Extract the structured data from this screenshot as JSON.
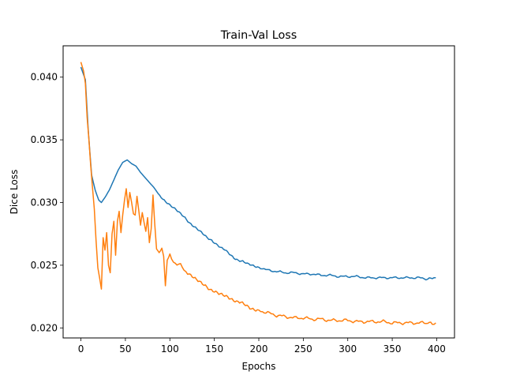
{
  "chart_data": {
    "type": "line",
    "title": "Train-Val Loss",
    "xlabel": "Epochs",
    "ylabel": "Dice Loss",
    "xlim": [
      -20,
      420
    ],
    "ylim": [
      0.0192,
      0.0425
    ],
    "xticks": [
      0,
      50,
      100,
      150,
      200,
      250,
      300,
      350,
      400
    ],
    "yticks": [
      0.02,
      0.025,
      0.03,
      0.035,
      0.04
    ],
    "ytick_labels": [
      "0.020",
      "0.025",
      "0.030",
      "0.035",
      "0.040"
    ],
    "grid": false,
    "legend": "none",
    "series": [
      {
        "color": "#1f77b4",
        "points": [
          [
            0,
            0.0408
          ],
          [
            5,
            0.0398
          ],
          [
            8,
            0.036
          ],
          [
            12,
            0.0322
          ],
          [
            16,
            0.031
          ],
          [
            20,
            0.0302
          ],
          [
            23,
            0.03
          ],
          [
            27,
            0.0304
          ],
          [
            32,
            0.031
          ],
          [
            37,
            0.0318
          ],
          [
            42,
            0.0326
          ],
          [
            47,
            0.0332
          ],
          [
            52,
            0.0334
          ],
          [
            57,
            0.0331
          ],
          [
            62,
            0.0329
          ],
          [
            67,
            0.0324
          ],
          [
            72,
            0.032
          ],
          [
            77,
            0.0316
          ],
          [
            82,
            0.0312
          ],
          [
            87,
            0.0307
          ],
          [
            92,
            0.0303
          ],
          [
            97,
            0.03
          ],
          [
            102,
            0.0297
          ],
          [
            107,
            0.0294
          ],
          [
            112,
            0.0291
          ],
          [
            117,
            0.0288
          ],
          [
            122,
            0.0284
          ],
          [
            127,
            0.0281
          ],
          [
            132,
            0.0278
          ],
          [
            137,
            0.0275
          ],
          [
            142,
            0.0272
          ],
          [
            147,
            0.027
          ],
          [
            152,
            0.0267
          ],
          [
            157,
            0.0264
          ],
          [
            162,
            0.0262
          ],
          [
            167,
            0.0259
          ],
          [
            172,
            0.0256
          ],
          [
            177,
            0.0254
          ],
          [
            182,
            0.0253
          ],
          [
            187,
            0.0251
          ],
          [
            192,
            0.025
          ],
          [
            197,
            0.0249
          ],
          [
            202,
            0.0248
          ],
          [
            210,
            0.0246
          ],
          [
            220,
            0.0245
          ],
          [
            230,
            0.0244
          ],
          [
            240,
            0.0244
          ],
          [
            250,
            0.0243
          ],
          [
            260,
            0.0243
          ],
          [
            270,
            0.0242
          ],
          [
            280,
            0.0242
          ],
          [
            290,
            0.0241
          ],
          [
            300,
            0.0241
          ],
          [
            310,
            0.0241
          ],
          [
            320,
            0.024
          ],
          [
            330,
            0.024
          ],
          [
            340,
            0.024
          ],
          [
            350,
            0.024
          ],
          [
            360,
            0.024
          ],
          [
            370,
            0.024
          ],
          [
            380,
            0.024
          ],
          [
            390,
            0.0239
          ],
          [
            395,
            0.024
          ],
          [
            399,
            0.024
          ]
        ]
      },
      {
        "color": "#ff7f0e",
        "points": [
          [
            0,
            0.0412
          ],
          [
            3,
            0.0405
          ],
          [
            5,
            0.0395
          ],
          [
            7,
            0.0368
          ],
          [
            9,
            0.035
          ],
          [
            11,
            0.033
          ],
          [
            13,
            0.0312
          ],
          [
            15,
            0.0295
          ],
          [
            17,
            0.027
          ],
          [
            19,
            0.0248
          ],
          [
            21,
            0.024
          ],
          [
            23,
            0.0231
          ],
          [
            25,
            0.0272
          ],
          [
            27,
            0.0262
          ],
          [
            29,
            0.0276
          ],
          [
            31,
            0.025
          ],
          [
            33,
            0.0244
          ],
          [
            35,
            0.0275
          ],
          [
            37,
            0.0285
          ],
          [
            39,
            0.0258
          ],
          [
            41,
            0.0285
          ],
          [
            43,
            0.0293
          ],
          [
            45,
            0.0276
          ],
          [
            47,
            0.029
          ],
          [
            49,
            0.0302
          ],
          [
            51,
            0.0311
          ],
          [
            53,
            0.0296
          ],
          [
            55,
            0.0308
          ],
          [
            57,
            0.03
          ],
          [
            59,
            0.0291
          ],
          [
            61,
            0.029
          ],
          [
            63,
            0.0305
          ],
          [
            65,
            0.0294
          ],
          [
            67,
            0.0282
          ],
          [
            69,
            0.0292
          ],
          [
            71,
            0.0284
          ],
          [
            73,
            0.0277
          ],
          [
            75,
            0.0288
          ],
          [
            77,
            0.0268
          ],
          [
            79,
            0.0279
          ],
          [
            81,
            0.0306
          ],
          [
            83,
            0.0283
          ],
          [
            85,
            0.0263
          ],
          [
            88,
            0.026
          ],
          [
            91,
            0.0263
          ],
          [
            93,
            0.0256
          ],
          [
            95,
            0.0234
          ],
          [
            97,
            0.0255
          ],
          [
            100,
            0.0258
          ],
          [
            104,
            0.0253
          ],
          [
            108,
            0.0251
          ],
          [
            112,
            0.025
          ],
          [
            116,
            0.0246
          ],
          [
            120,
            0.0244
          ],
          [
            125,
            0.0241
          ],
          [
            130,
            0.0238
          ],
          [
            135,
            0.0236
          ],
          [
            140,
            0.0234
          ],
          [
            145,
            0.0231
          ],
          [
            150,
            0.0229
          ],
          [
            155,
            0.0227
          ],
          [
            160,
            0.0226
          ],
          [
            165,
            0.0225
          ],
          [
            170,
            0.0223
          ],
          [
            175,
            0.0221
          ],
          [
            180,
            0.022
          ],
          [
            185,
            0.0218
          ],
          [
            190,
            0.0216
          ],
          [
            195,
            0.0215
          ],
          [
            200,
            0.0214
          ],
          [
            210,
            0.0212
          ],
          [
            220,
            0.021
          ],
          [
            230,
            0.0209
          ],
          [
            240,
            0.0208
          ],
          [
            250,
            0.0208
          ],
          [
            260,
            0.0207
          ],
          [
            270,
            0.0207
          ],
          [
            280,
            0.0206
          ],
          [
            290,
            0.0206
          ],
          [
            300,
            0.0206
          ],
          [
            310,
            0.0205
          ],
          [
            320,
            0.0205
          ],
          [
            330,
            0.0205
          ],
          [
            340,
            0.0205
          ],
          [
            350,
            0.0204
          ],
          [
            360,
            0.0204
          ],
          [
            370,
            0.0204
          ],
          [
            380,
            0.0204
          ],
          [
            390,
            0.0204
          ],
          [
            395,
            0.0203
          ],
          [
            399,
            0.0204
          ]
        ]
      }
    ]
  }
}
